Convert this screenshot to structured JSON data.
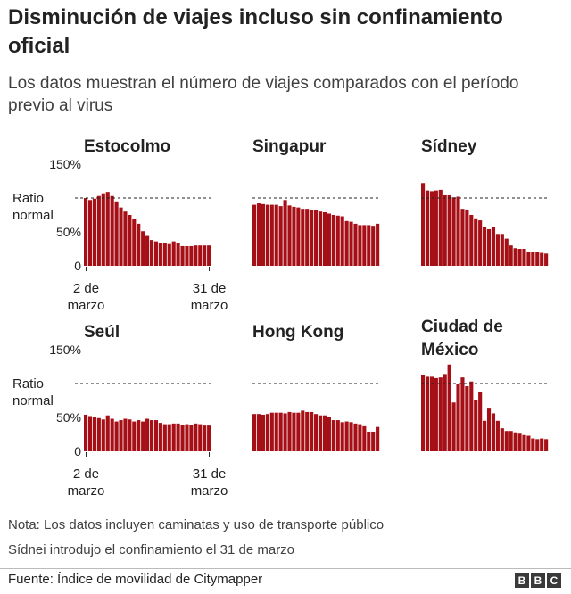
{
  "header": {
    "title": "Disminución de viajes incluso sin confinamiento oficial",
    "subtitle": "Los datos muestran el número de viajes comparados con el período previo al virus"
  },
  "notes": [
    "Nota: Los datos incluyen caminatas y uso de transporte público",
    "Sídnei introdujo el confinamiento el 31 de marzo"
  ],
  "footer": {
    "source": "Fuente: Índice de movilidad de Citymapper",
    "logo": [
      "B",
      "B",
      "C"
    ]
  },
  "colors": {
    "bar": "#a50f15",
    "text": "#222222",
    "reference_line": "#222222",
    "footer_rule": "#bbbbbb"
  },
  "axis_labels": {
    "ytick_top": "150%",
    "normal_line": [
      "Ratio",
      "normal"
    ],
    "ytick_mid": "50%",
    "ytick_zero": "0",
    "x_start": [
      "2 de",
      "marzo"
    ],
    "x_end": [
      "31 de",
      "marzo"
    ]
  },
  "chart_data": [
    {
      "type": "bar",
      "title": "Estocolmo",
      "ylim": [
        0,
        150
      ],
      "reference_line": 100,
      "values": [
        100,
        97,
        99,
        103,
        107,
        109,
        103,
        95,
        86,
        80,
        75,
        69,
        62,
        51,
        44,
        38,
        36,
        33,
        33,
        32,
        36,
        34,
        29,
        29,
        29,
        30,
        30,
        30,
        30
      ]
    },
    {
      "type": "bar",
      "title": "Singapur",
      "ylim": [
        0,
        150
      ],
      "reference_line": 100,
      "values": [
        90,
        92,
        91,
        90,
        90,
        90,
        88,
        97,
        89,
        87,
        86,
        84,
        84,
        82,
        82,
        80,
        79,
        77,
        75,
        74,
        73,
        66,
        65,
        62,
        60,
        60,
        60,
        59,
        62
      ]
    },
    {
      "type": "bar",
      "title": "Sídney",
      "ylim": [
        0,
        150
      ],
      "reference_line": 100,
      "values": [
        122,
        111,
        110,
        111,
        112,
        104,
        104,
        101,
        102,
        84,
        83,
        75,
        70,
        67,
        58,
        54,
        57,
        47,
        47,
        40,
        30,
        26,
        25,
        25,
        21,
        20,
        20,
        19,
        18
      ]
    },
    {
      "type": "bar",
      "title": "Seúl",
      "ylim": [
        0,
        150
      ],
      "reference_line": 100,
      "values": [
        54,
        52,
        50,
        49,
        47,
        53,
        48,
        44,
        46,
        48,
        47,
        44,
        46,
        44,
        48,
        46,
        46,
        42,
        40,
        40,
        41,
        41,
        39,
        40,
        39,
        41,
        40,
        38,
        38
      ]
    },
    {
      "type": "bar",
      "title": "Hong Kong",
      "ylim": [
        0,
        150
      ],
      "reference_line": 100,
      "values": [
        55,
        55,
        54,
        55,
        57,
        57,
        57,
        56,
        58,
        57,
        57,
        60,
        58,
        58,
        55,
        53,
        53,
        50,
        46,
        46,
        43,
        44,
        43,
        41,
        40,
        37,
        29,
        29,
        36
      ]
    },
    {
      "type": "bar",
      "title": "Ciudad de México",
      "ylim": [
        0,
        150
      ],
      "reference_line": 100,
      "values": [
        113,
        110,
        110,
        108,
        109,
        114,
        128,
        72,
        100,
        109,
        96,
        103,
        75,
        87,
        45,
        63,
        56,
        45,
        34,
        30,
        30,
        28,
        26,
        24,
        23,
        19,
        18,
        19,
        18
      ]
    }
  ]
}
